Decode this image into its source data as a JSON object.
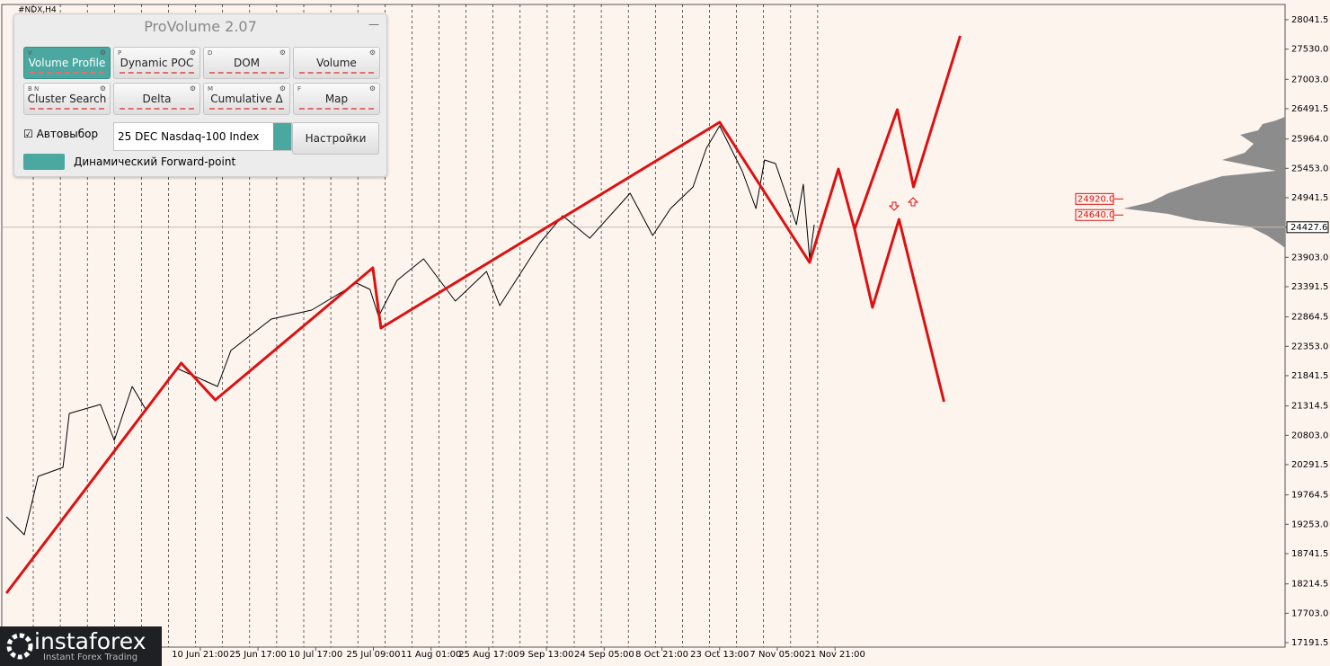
{
  "header": {
    "symbol": "#NDX,H4"
  },
  "panel": {
    "title": "ProVolume 2.07",
    "buttons": [
      {
        "key": "V",
        "label": "Volume Profile"
      },
      {
        "key": "P",
        "label": "Dynamic POC"
      },
      {
        "key": "D",
        "label": "DOM"
      },
      {
        "key": "",
        "label": "Volume"
      },
      {
        "key": "B N",
        "label": "Cluster Search"
      },
      {
        "key": "",
        "label": "Delta"
      },
      {
        "key": "M",
        "label": "Cumulative Δ"
      },
      {
        "key": "F",
        "label": "Map"
      }
    ],
    "autoselect": "Автовыбор",
    "instrument": "25 DEC Nasdaq-100 Index",
    "settings": "Настройки",
    "forward_point": "Динамический Forward-point"
  },
  "logo": {
    "name": "instaforex",
    "tagline": "Instant Forex Trading"
  },
  "chart_data": {
    "type": "line",
    "xlim": [
      -3.44,
      18.8
    ],
    "ylim": [
      17113,
      28307
    ],
    "xticks": [
      {
        "value": 0,
        "label": "10 Jun 21:00"
      },
      {
        "value": 1,
        "label": "25 Jun 17:00"
      },
      {
        "value": 2,
        "label": "10 Jul 17:00"
      },
      {
        "value": 3,
        "label": "25 Jul 09:00"
      },
      {
        "value": 4,
        "label": "11 Aug 01:00"
      },
      {
        "value": 5,
        "label": "25 Aug 17:00"
      },
      {
        "value": 6,
        "label": "9 Sep 13:00"
      },
      {
        "value": 7,
        "label": "24 Sep 05:00"
      },
      {
        "value": 8,
        "label": "8 Oct 21:00"
      },
      {
        "value": 9,
        "label": "23 Oct 13:00"
      },
      {
        "value": 10,
        "label": "7 Nov 05:00"
      },
      {
        "value": 11,
        "label": "21 Nov 21:00"
      }
    ],
    "yticks": [
      28041.5,
      {
        "value": 27530,
        "label": "27530.0"
      },
      {
        "value": 27003,
        "label": "27003.0"
      },
      26491.5,
      {
        "value": 25964,
        "label": "25964.0"
      },
      {
        "value": 25453,
        "label": "25453.0"
      },
      24941.5,
      {
        "value": 24427.6,
        "label": "24427.6"
      },
      {
        "value": 23903,
        "label": "23903.0"
      },
      23391.5,
      22864.5,
      {
        "value": 22353,
        "label": "22353.0"
      },
      21841.5,
      21314.5,
      {
        "value": 20803,
        "label": "20803.0"
      },
      20291.5,
      19764.5,
      {
        "value": 19253,
        "label": "19253.0"
      },
      18741.5,
      18214.5,
      {
        "value": 17703,
        "label": "17703.0"
      },
      17191.5
    ],
    "current_price": {
      "value": 24427.6,
      "label": "24427.6"
    },
    "price_levels": [
      {
        "value": 24920,
        "label": "24920.0"
      },
      {
        "value": 24640,
        "label": "24640.0"
      }
    ],
    "series": [
      {
        "color": "#000000",
        "x": [
          -3.36,
          -3.05,
          -2.81,
          -2.38,
          -2.27,
          -1.73,
          -1.49,
          -1.18,
          -0.95,
          -0.4,
          0.3,
          0.53,
          1.23,
          1.93,
          2.71,
          2.94,
          3.09,
          3.41,
          3.87,
          4.42,
          4.96,
          5.19,
          5.89,
          6.28,
          6.75,
          7.45,
          7.84,
          8.15,
          8.54,
          8.77,
          9.0,
          9.39,
          9.63,
          9.78,
          9.97,
          10.33,
          10.45,
          10.56,
          10.64
        ],
        "values": [
          19383,
          19070,
          20088,
          20244,
          21184,
          21340,
          20714,
          21653,
          21262,
          21966,
          21653,
          22280,
          22828,
          22984,
          23454,
          23344,
          22874,
          23501,
          23877,
          23141,
          23657,
          23062,
          24158,
          24628,
          24236,
          25020,
          24284,
          24753,
          25129,
          25802,
          26194,
          25411,
          24753,
          25599,
          25536,
          24471,
          25176,
          23877,
          24471
        ]
      },
      {
        "color": "#dd1111",
        "x": [
          -3.36,
          -0.33,
          0.26,
          2.99,
          3.13,
          9.0,
          10.56,
          11.06,
          11.34,
          12.08,
          12.36,
          13.17
        ],
        "values": [
          18052,
          22060,
          21418,
          23720,
          22671,
          26256,
          23814,
          25442,
          24393,
          26475,
          25129,
          27760
        ]
      },
      {
        "color": "#dd1111",
        "x": [
          11.34,
          11.65,
          12.11,
          12.89
        ],
        "values": [
          24393,
          23031,
          24565,
          21387
        ]
      }
    ]
  }
}
